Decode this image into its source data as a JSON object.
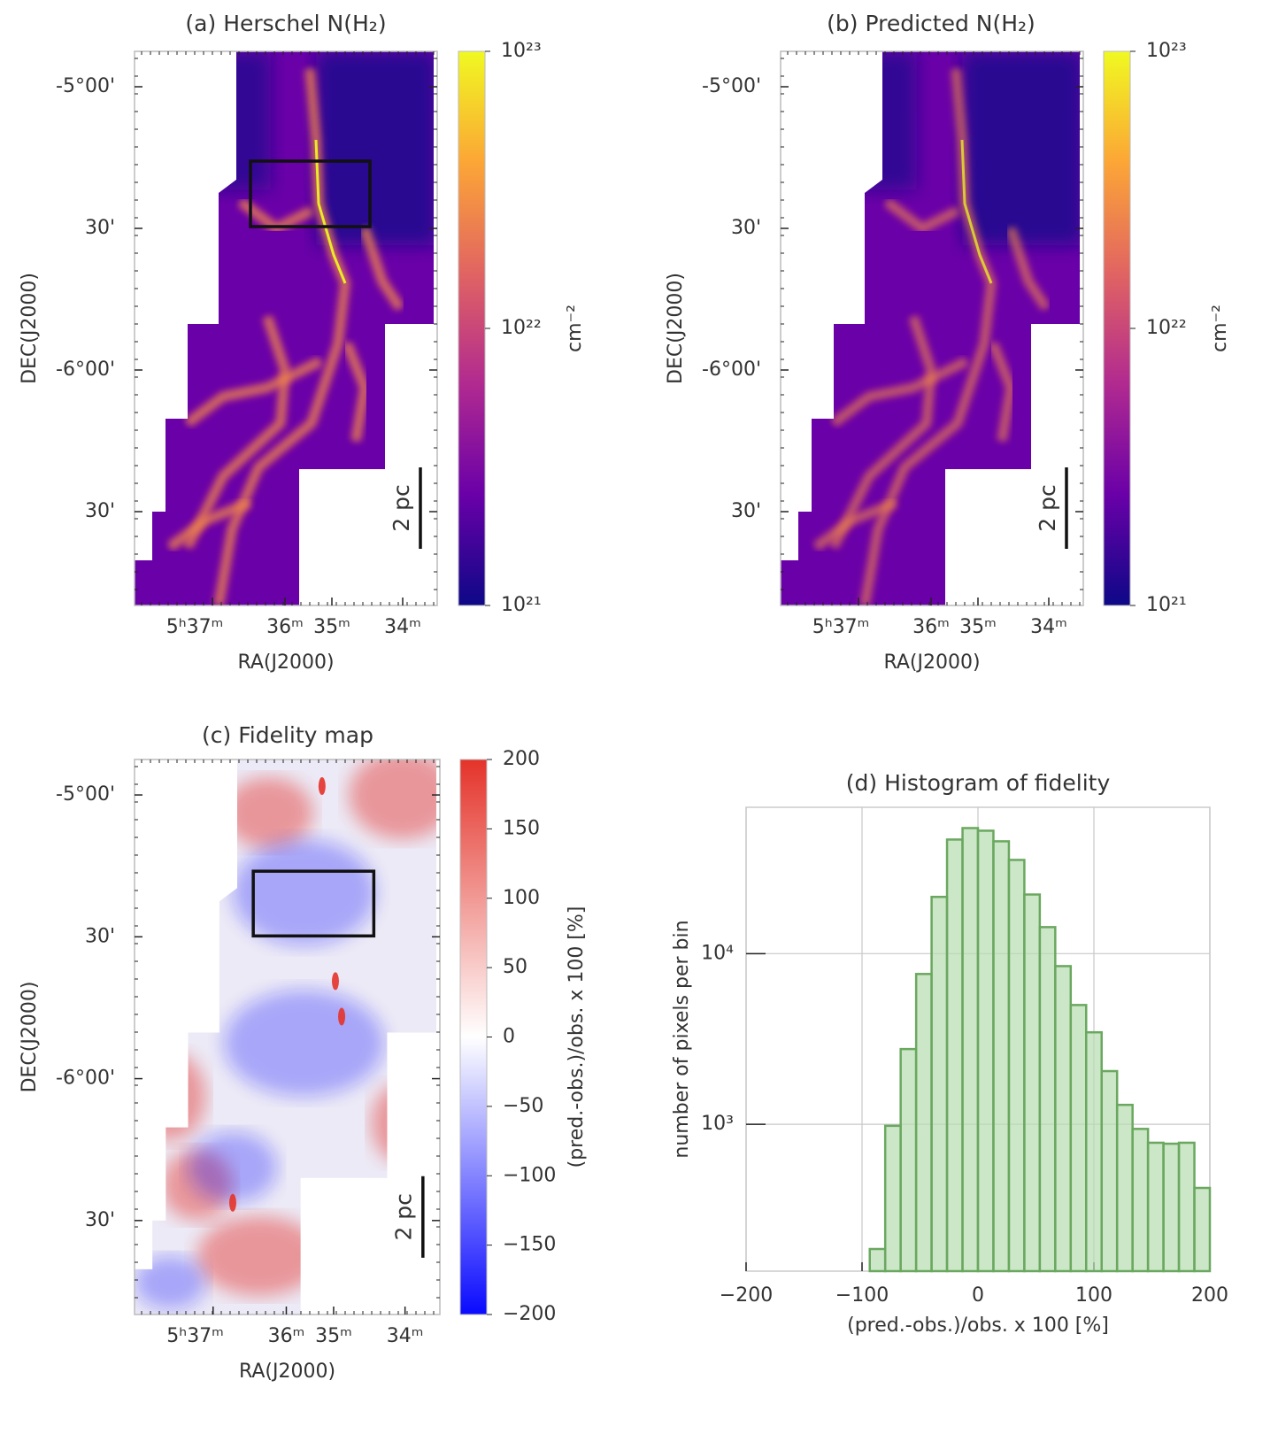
{
  "chart_data": [
    {
      "type": "map",
      "title": "(a) Herschel N(H₂)",
      "xlabel": "RA(J2000)",
      "ylabel": "DEC(J2000)",
      "xticks": [
        "5ʰ37ᵐ",
        "36ᵐ",
        "35ᵐ",
        "34ᵐ"
      ],
      "yticks": [
        "-5°00'",
        "30'",
        "-6°00'",
        "30'"
      ],
      "scalebar": "2 pc",
      "colorbar": {
        "label": "cm⁻²",
        "log": true,
        "lim": [
          1e+21,
          1e+23
        ],
        "ticks": [
          {
            "value": 1e+21,
            "label": "10²¹"
          },
          {
            "value": 1e+22,
            "label": "10²²"
          },
          {
            "value": 1e+23,
            "label": "10²³"
          }
        ],
        "colormap": [
          "#0d0887",
          "#6a00a8",
          "#b12a90",
          "#e16462",
          "#fca636",
          "#f0f921"
        ]
      }
    },
    {
      "type": "map",
      "title": "(b) Predicted N(H₂)",
      "xlabel": "RA(J2000)",
      "ylabel": "DEC(J2000)",
      "xticks": [
        "5ʰ37ᵐ",
        "36ᵐ",
        "35ᵐ",
        "34ᵐ"
      ],
      "yticks": [
        "-5°00'",
        "30'",
        "-6°00'",
        "30'"
      ],
      "scalebar": "2 pc",
      "colorbar": {
        "label": "cm⁻²",
        "log": true,
        "lim": [
          1e+21,
          1e+23
        ],
        "ticks": [
          {
            "value": 1e+21,
            "label": "10²¹"
          },
          {
            "value": 1e+22,
            "label": "10²²"
          },
          {
            "value": 1e+23,
            "label": "10²³"
          }
        ],
        "colormap": [
          "#0d0887",
          "#6a00a8",
          "#b12a90",
          "#e16462",
          "#fca636",
          "#f0f921"
        ]
      }
    },
    {
      "type": "map",
      "title": "(c) Fidelity map",
      "xlabel": "RA(J2000)",
      "ylabel": "DEC(J2000)",
      "xticks": [
        "5ʰ37ᵐ",
        "36ᵐ",
        "35ᵐ",
        "34ᵐ"
      ],
      "yticks": [
        "-5°00'",
        "30'",
        "-6°00'",
        "30'"
      ],
      "scalebar": "2 pc",
      "colorbar": {
        "label": "(pred.-obs.)/obs. x 100 [%]",
        "log": false,
        "lim": [
          -200,
          200
        ],
        "ticks": [
          {
            "value": -200,
            "label": "−200"
          },
          {
            "value": -150,
            "label": "−150"
          },
          {
            "value": -100,
            "label": "−100"
          },
          {
            "value": -50,
            "label": "−50"
          },
          0,
          50,
          100,
          150,
          200
        ],
        "colormap": [
          "#0a0aff",
          "#ffffff",
          "#e4332a"
        ]
      }
    },
    {
      "type": "histogram",
      "title": "(d) Histogram of fidelity",
      "xlabel": "(pred.-obs.)/obs. x 100 [%]",
      "ylabel": "number of pixels per bin",
      "bins": [
        -93.33,
        -80,
        -66.67,
        -53.33,
        -40,
        -26.67,
        -13.33,
        0,
        13.33,
        26.67,
        40,
        53.33,
        66.67,
        80,
        93.33,
        106.67,
        120,
        133.33,
        146.67,
        160,
        173.33,
        186.67,
        200
      ],
      "values": [
        186,
        980,
        2760,
        7600,
        21500,
        46600,
        54400,
        52500,
        45500,
        35400,
        22200,
        14300,
        8450,
        5000,
        3460,
        2050,
        1300,
        940,
        780,
        770,
        780,
        424
      ],
      "color": "#b7dcb0",
      "edgecolor": "#6aa85f",
      "xlim": [
        -200,
        200
      ],
      "xticks": [
        {
          "value": -200,
          "label": "−200"
        },
        {
          "value": -100,
          "label": "−100"
        },
        0,
        100,
        200
      ],
      "ylim": [
        138,
        72000
      ],
      "ylog": true,
      "yticks": [
        {
          "value": 1000,
          "label": "10³"
        },
        {
          "value": 10000,
          "label": "10⁴"
        }
      ],
      "grid": true
    }
  ]
}
